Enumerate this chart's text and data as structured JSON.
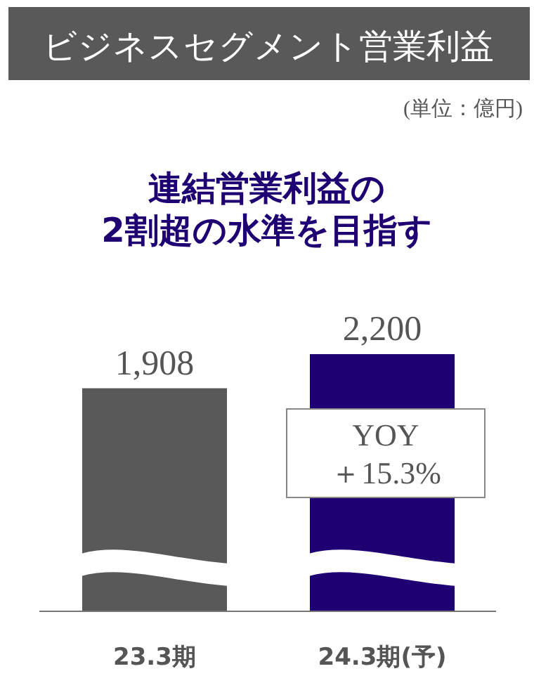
{
  "chart_data": {
    "type": "bar",
    "title": "ビジネスセグメント営業利益",
    "subtitle": "連結営業利益の\n2割超の水準を目指す",
    "annotations": [
      "(単位：億円)",
      "YOY\n＋15.3%"
    ],
    "categories": [
      "23.3期",
      "24.3期(予)"
    ],
    "values": [
      1908,
      2200
    ],
    "colors": [
      "#595959",
      "#1e0073"
    ],
    "value_labels": [
      "1,908",
      "2,200"
    ]
  }
}
